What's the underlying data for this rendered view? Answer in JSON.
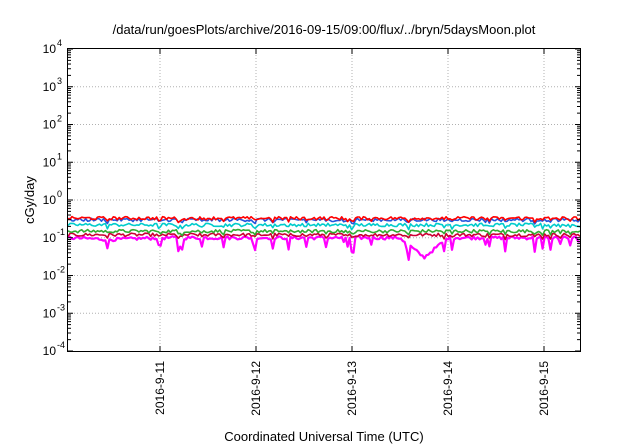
{
  "chart_data": {
    "type": "line",
    "title": "/data/run/goesPlots/archive/2016-09-15/09:00/flux/../bryn/5daysMoon.plot",
    "xlabel": "Coordinated Universal Time (UTC)",
    "ylabel": "cGy/day",
    "y_scale": "log",
    "ylim": [
      0.0001,
      10000
    ],
    "y_ticks": [
      {
        "base": "10",
        "exp": "-4",
        "value": 0.0001
      },
      {
        "base": "10",
        "exp": "-3",
        "value": 0.001
      },
      {
        "base": "10",
        "exp": "-2",
        "value": 0.01
      },
      {
        "base": "10",
        "exp": "-1",
        "value": 0.1
      },
      {
        "base": "10",
        "exp": "0",
        "value": 1
      },
      {
        "base": "10",
        "exp": "1",
        "value": 10
      },
      {
        "base": "10",
        "exp": "2",
        "value": 100
      },
      {
        "base": "10",
        "exp": "3",
        "value": 1000
      },
      {
        "base": "10",
        "exp": "4",
        "value": 10000
      }
    ],
    "xlim": [
      "2016-09-10 01:00",
      "2016-09-15 09:00"
    ],
    "x_ticks": [
      "2016-9-11",
      "2016-9-12",
      "2016-9-13",
      "2016-9-14",
      "2016-9-15"
    ],
    "grid": true,
    "series": [
      {
        "color": "#ff00ff",
        "x": [
          "2016-09-10 01:00",
          "2016-09-10 12:00",
          "2016-09-11 00:00",
          "2016-09-11 12:00",
          "2016-09-12 00:00",
          "2016-09-12 12:00",
          "2016-09-13 00:00",
          "2016-09-13 12:00",
          "2016-09-13 18:00",
          "2016-09-14 00:00",
          "2016-09-14 12:00",
          "2016-09-15 00:00",
          "2016-09-15 09:00"
        ],
        "y": [
          0.1,
          0.09,
          0.1,
          0.1,
          0.1,
          0.1,
          0.1,
          0.1,
          0.03,
          0.1,
          0.1,
          0.1,
          0.1
        ]
      },
      {
        "color": "#cc0033",
        "x": [
          "2016-09-10 01:00",
          "2016-09-11 00:00",
          "2016-09-12 00:00",
          "2016-09-13 00:00",
          "2016-09-14 00:00",
          "2016-09-15 00:00",
          "2016-09-15 09:00"
        ],
        "y": [
          0.12,
          0.12,
          0.12,
          0.12,
          0.12,
          0.12,
          0.12
        ]
      },
      {
        "color": "#33aa33",
        "x": [
          "2016-09-10 01:00",
          "2016-09-11 00:00",
          "2016-09-12 00:00",
          "2016-09-13 00:00",
          "2016-09-14 00:00",
          "2016-09-15 00:00",
          "2016-09-15 09:00"
        ],
        "y": [
          0.15,
          0.15,
          0.15,
          0.15,
          0.15,
          0.15,
          0.15
        ]
      },
      {
        "color": "#00cccc",
        "x": [
          "2016-09-10 01:00",
          "2016-09-11 00:00",
          "2016-09-12 00:00",
          "2016-09-13 00:00",
          "2016-09-14 00:00",
          "2016-09-15 00:00",
          "2016-09-15 09:00"
        ],
        "y": [
          0.22,
          0.22,
          0.22,
          0.22,
          0.22,
          0.22,
          0.22
        ]
      },
      {
        "color": "#2255dd",
        "x": [
          "2016-09-10 01:00",
          "2016-09-11 00:00",
          "2016-09-12 00:00",
          "2016-09-13 00:00",
          "2016-09-14 00:00",
          "2016-09-15 00:00",
          "2016-09-15 09:00"
        ],
        "y": [
          0.3,
          0.3,
          0.3,
          0.3,
          0.3,
          0.3,
          0.3
        ]
      },
      {
        "color": "#ff0000",
        "x": [
          "2016-09-10 01:00",
          "2016-09-11 00:00",
          "2016-09-12 00:00",
          "2016-09-13 00:00",
          "2016-09-14 00:00",
          "2016-09-15 00:00",
          "2016-09-15 09:00"
        ],
        "y": [
          0.33,
          0.33,
          0.33,
          0.33,
          0.33,
          0.33,
          0.33
        ]
      }
    ]
  }
}
